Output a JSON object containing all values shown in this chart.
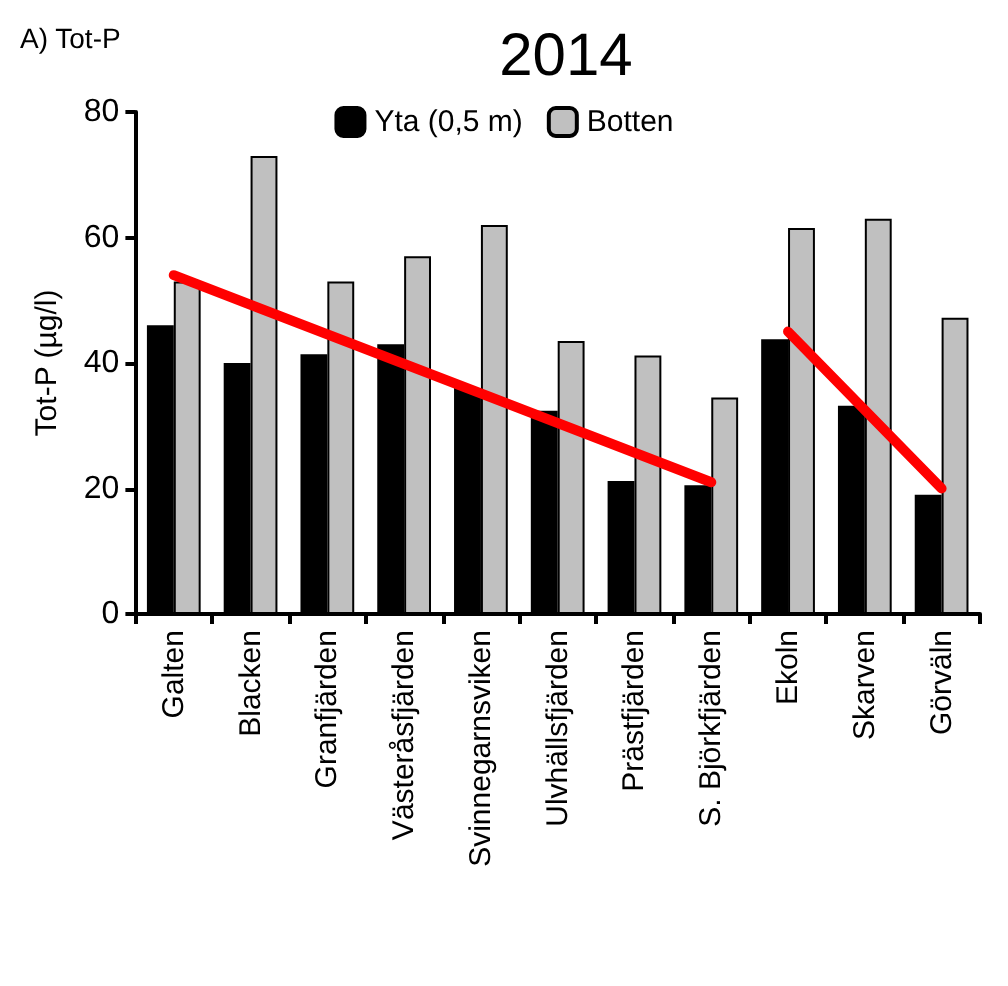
{
  "chart_data": {
    "type": "bar",
    "title": "2014",
    "ylabel": "Tot-P (µg/l)",
    "annotations": [
      "A) Tot-P"
    ],
    "categories": [
      "Galten",
      "Blacken",
      "Granfjärden",
      "Västeråsfjärden",
      "Svinnegarnsviken",
      "Ulvhällsfjärden",
      "Prästfjärden",
      "S. Björkfjärden",
      "Ekoln",
      "Skarven",
      "Görväln"
    ],
    "series": [
      {
        "name": "Yta (0,5 m)",
        "color": "#000000",
        "values": [
          46,
          40,
          41.4,
          43,
          36,
          32.4,
          21.2,
          20.5,
          43.8,
          33.2,
          19
        ]
      },
      {
        "name": "Botten",
        "color": "#c0c0c0",
        "values": [
          53,
          73,
          53,
          57,
          62,
          43.5,
          41.2,
          34.5,
          61.5,
          63,
          47.2
        ]
      },
      {
        "type": "line",
        "color": "#ff0000",
        "x": [
          "Galten",
          "S. Björkfjärden"
        ],
        "values": [
          54,
          21
        ]
      },
      {
        "type": "line",
        "color": "#ff0000",
        "x": [
          "Ekoln",
          "Görväln"
        ],
        "values": [
          45,
          20
        ]
      }
    ],
    "ylim": [
      0,
      80
    ],
    "yticks": [
      0,
      20,
      40,
      60,
      80
    ],
    "grid": false,
    "legend": "top"
  }
}
